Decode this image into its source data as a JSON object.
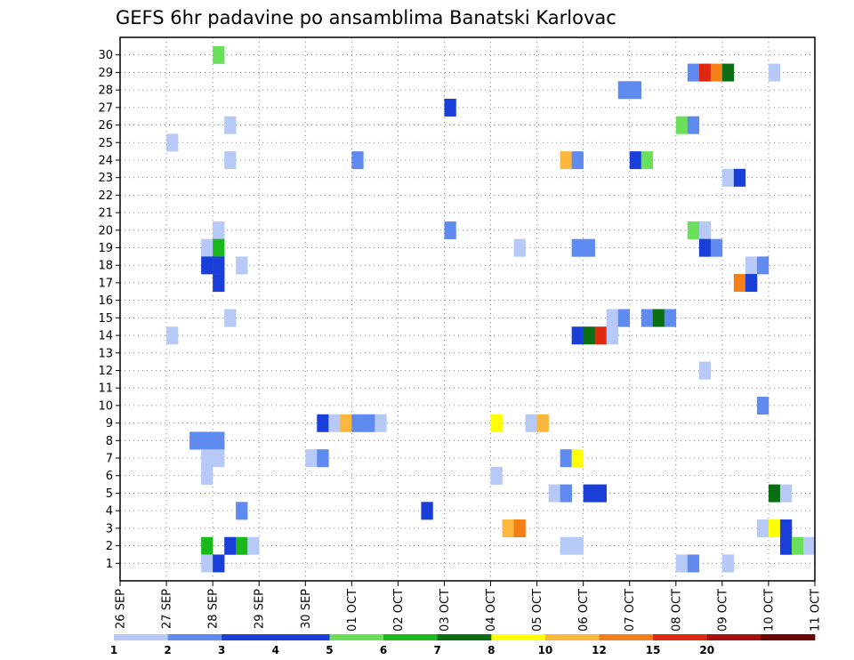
{
  "chart_data": {
    "type": "heatmap",
    "title": "GEFS 6hr padavine po ansamblima Banatski Karlovac",
    "y_categories": [
      "1",
      "2",
      "3",
      "4",
      "5",
      "6",
      "7",
      "8",
      "9",
      "10",
      "11",
      "12",
      "13",
      "14",
      "15",
      "16",
      "17",
      "18",
      "19",
      "20",
      "21",
      "22",
      "23",
      "24",
      "25",
      "26",
      "27",
      "28",
      "29",
      "30"
    ],
    "x_tick_labels": [
      "26 SEP",
      "27 SEP",
      "28 SEP",
      "29 SEP",
      "30 SEP",
      "01 OCT",
      "02 OCT",
      "03 OCT",
      "04 OCT",
      "05 OCT",
      "06 OCT",
      "07 OCT",
      "08 OCT",
      "09 OCT",
      "10 OCT",
      "11 OCT"
    ],
    "x_unit": "6-hour steps from 26 SEP 00",
    "grid": true,
    "colorbar": {
      "labels": [
        "1",
        "2",
        "3",
        "4",
        "5",
        "6",
        "7",
        "8",
        "10",
        "12",
        "15",
        "20"
      ],
      "colors": [
        "#b7c9f7",
        "#5f8af0",
        "#1a3fd9",
        "#1c3ddb",
        "#6ae05a",
        "#1ab81a",
        "#0a6e14",
        "#ffff00",
        "#fdb73c",
        "#f57f17",
        "#e02810",
        "#a51010",
        "#6b0505"
      ]
    },
    "cells": [
      {
        "member": 30,
        "step": 8,
        "value": 5
      },
      {
        "member": 29,
        "step": 49,
        "value": 2
      },
      {
        "member": 29,
        "step": 50,
        "value": 15
      },
      {
        "member": 29,
        "step": 51,
        "value": 12
      },
      {
        "member": 29,
        "step": 52,
        "value": 7
      },
      {
        "member": 29,
        "step": 56,
        "value": 1
      },
      {
        "member": 28,
        "step": 43,
        "value": 2
      },
      {
        "member": 28,
        "step": 44,
        "value": 2
      },
      {
        "member": 27,
        "step": 28,
        "value": 3
      },
      {
        "member": 26,
        "step": 9,
        "value": 1
      },
      {
        "member": 26,
        "step": 48,
        "value": 5
      },
      {
        "member": 26,
        "step": 49,
        "value": 2
      },
      {
        "member": 25,
        "step": 4,
        "value": 1
      },
      {
        "member": 24,
        "step": 9,
        "value": 1
      },
      {
        "member": 24,
        "step": 20,
        "value": 2
      },
      {
        "member": 24,
        "step": 38,
        "value": 10
      },
      {
        "member": 24,
        "step": 39,
        "value": 2
      },
      {
        "member": 24,
        "step": 44,
        "value": 3
      },
      {
        "member": 24,
        "step": 45,
        "value": 5
      },
      {
        "member": 23,
        "step": 52,
        "value": 1
      },
      {
        "member": 23,
        "step": 53,
        "value": 3
      },
      {
        "member": 20,
        "step": 8,
        "value": 1
      },
      {
        "member": 20,
        "step": 28,
        "value": 2
      },
      {
        "member": 20,
        "step": 49,
        "value": 5
      },
      {
        "member": 20,
        "step": 50,
        "value": 1
      },
      {
        "member": 19,
        "step": 7,
        "value": 1
      },
      {
        "member": 19,
        "step": 8,
        "value": 6
      },
      {
        "member": 19,
        "step": 34,
        "value": 1
      },
      {
        "member": 19,
        "step": 39,
        "value": 2
      },
      {
        "member": 19,
        "step": 40,
        "value": 2
      },
      {
        "member": 19,
        "step": 50,
        "value": 3
      },
      {
        "member": 19,
        "step": 51,
        "value": 2
      },
      {
        "member": 18,
        "step": 7,
        "value": 3
      },
      {
        "member": 18,
        "step": 8,
        "value": 3
      },
      {
        "member": 18,
        "step": 10,
        "value": 1
      },
      {
        "member": 18,
        "step": 54,
        "value": 1
      },
      {
        "member": 18,
        "step": 55,
        "value": 2
      },
      {
        "member": 17,
        "step": 8,
        "value": 3
      },
      {
        "member": 17,
        "step": 53,
        "value": 12
      },
      {
        "member": 17,
        "step": 54,
        "value": 3
      },
      {
        "member": 15,
        "step": 9,
        "value": 1
      },
      {
        "member": 15,
        "step": 42,
        "value": 1
      },
      {
        "member": 15,
        "step": 43,
        "value": 2
      },
      {
        "member": 15,
        "step": 45,
        "value": 2
      },
      {
        "member": 15,
        "step": 46,
        "value": 7
      },
      {
        "member": 15,
        "step": 47,
        "value": 2
      },
      {
        "member": 14,
        "step": 4,
        "value": 1
      },
      {
        "member": 14,
        "step": 39,
        "value": 3
      },
      {
        "member": 14,
        "step": 40,
        "value": 7
      },
      {
        "member": 14,
        "step": 41,
        "value": 15
      },
      {
        "member": 14,
        "step": 42,
        "value": 1
      },
      {
        "member": 12,
        "step": 50,
        "value": 1
      },
      {
        "member": 10,
        "step": 55,
        "value": 2
      },
      {
        "member": 9,
        "step": 17,
        "value": 3
      },
      {
        "member": 9,
        "step": 18,
        "value": 1
      },
      {
        "member": 9,
        "step": 19,
        "value": 10
      },
      {
        "member": 9,
        "step": 20,
        "value": 2
      },
      {
        "member": 9,
        "step": 21,
        "value": 2
      },
      {
        "member": 9,
        "step": 22,
        "value": 1
      },
      {
        "member": 9,
        "step": 32,
        "value": 8
      },
      {
        "member": 9,
        "step": 35,
        "value": 1
      },
      {
        "member": 9,
        "step": 36,
        "value": 10
      },
      {
        "member": 8,
        "step": 6,
        "value": 2
      },
      {
        "member": 8,
        "step": 7,
        "value": 2
      },
      {
        "member": 8,
        "step": 8,
        "value": 2
      },
      {
        "member": 7,
        "step": 7,
        "value": 1
      },
      {
        "member": 7,
        "step": 8,
        "value": 1
      },
      {
        "member": 7,
        "step": 16,
        "value": 1
      },
      {
        "member": 7,
        "step": 17,
        "value": 2
      },
      {
        "member": 7,
        "step": 38,
        "value": 2
      },
      {
        "member": 7,
        "step": 39,
        "value": 8
      },
      {
        "member": 6,
        "step": 7,
        "value": 1
      },
      {
        "member": 6,
        "step": 32,
        "value": 1
      },
      {
        "member": 5,
        "step": 37,
        "value": 1
      },
      {
        "member": 5,
        "step": 38,
        "value": 2
      },
      {
        "member": 5,
        "step": 40,
        "value": 3
      },
      {
        "member": 5,
        "step": 41,
        "value": 3
      },
      {
        "member": 5,
        "step": 56,
        "value": 7
      },
      {
        "member": 5,
        "step": 57,
        "value": 1
      },
      {
        "member": 4,
        "step": 10,
        "value": 2
      },
      {
        "member": 4,
        "step": 26,
        "value": 3
      },
      {
        "member": 3,
        "step": 33,
        "value": 10
      },
      {
        "member": 3,
        "step": 34,
        "value": 12
      },
      {
        "member": 3,
        "step": 55,
        "value": 1
      },
      {
        "member": 3,
        "step": 56,
        "value": 8
      },
      {
        "member": 3,
        "step": 57,
        "value": 3
      },
      {
        "member": 2,
        "step": 7,
        "value": 6
      },
      {
        "member": 2,
        "step": 9,
        "value": 3
      },
      {
        "member": 2,
        "step": 10,
        "value": 6
      },
      {
        "member": 2,
        "step": 11,
        "value": 1
      },
      {
        "member": 2,
        "step": 38,
        "value": 1
      },
      {
        "member": 2,
        "step": 39,
        "value": 1
      },
      {
        "member": 2,
        "step": 57,
        "value": 3
      },
      {
        "member": 2,
        "step": 58,
        "value": 5
      },
      {
        "member": 2,
        "step": 59,
        "value": 1
      },
      {
        "member": 1,
        "step": 7,
        "value": 1
      },
      {
        "member": 1,
        "step": 8,
        "value": 3
      },
      {
        "member": 1,
        "step": 48,
        "value": 1
      },
      {
        "member": 1,
        "step": 49,
        "value": 2
      },
      {
        "member": 1,
        "step": 52,
        "value": 1
      }
    ]
  }
}
